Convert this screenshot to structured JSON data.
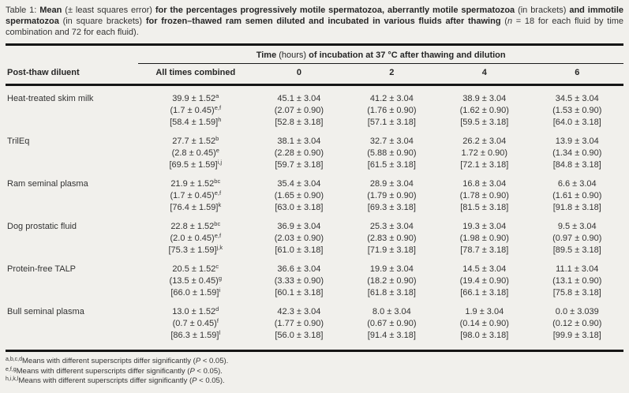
{
  "page": {
    "background": "#f1f0ec",
    "text_color": "#333333",
    "rule_color": "#161616"
  },
  "caption": {
    "segments": [
      {
        "text": "Table 1: ",
        "style": ""
      },
      {
        "text": "Mean ",
        "style": "bold"
      },
      {
        "text": "(± least squares error) ",
        "style": ""
      },
      {
        "text": "for the percentages progressively motile spermatozoa, aberrantly motile spermatozoa ",
        "style": "bold"
      },
      {
        "text": "(in brackets) ",
        "style": ""
      },
      {
        "text": "and immotile spermatozoa ",
        "style": "bold"
      },
      {
        "text": "(in square brackets) ",
        "style": ""
      },
      {
        "text": "for frozen–thawed ram semen diluted and incubated in various fluids after thawing ",
        "style": "bold"
      },
      {
        "text": "(",
        "style": ""
      },
      {
        "text": "n",
        "style": "italic"
      },
      {
        "text": " = 18 for each fluid by time combination and 72 for each fluid).",
        "style": ""
      }
    ]
  },
  "table": {
    "group_header_segments": [
      {
        "text": "Time ",
        "style": "bold"
      },
      {
        "text": "(hours) ",
        "style": ""
      },
      {
        "text": "of incubation at 37 °C after thawing and dilution",
        "style": "bold"
      }
    ],
    "col_headers": [
      "Post-thaw diluent",
      "All times combined",
      "0",
      "2",
      "4",
      "6"
    ],
    "rows": [
      {
        "diluent": "Heat-treated skim milk",
        "cells": [
          {
            "motile": "39.9 ± 1.52",
            "motile_sup": "a",
            "aberrant": "(1.7 ± 0.45)",
            "aberrant_sup": "e,f",
            "immotile": "[58.4 ± 1.59]",
            "immotile_sup": "h"
          },
          {
            "motile": "45.1 ± 3.04",
            "motile_sup": "",
            "aberrant": "(2.07 ± 0.90)",
            "aberrant_sup": "",
            "immotile": "[52.8 ± 3.18]",
            "immotile_sup": ""
          },
          {
            "motile": "41.2 ± 3.04",
            "motile_sup": "",
            "aberrant": "(1.76 ± 0.90)",
            "aberrant_sup": "",
            "immotile": "[57.1 ± 3.18]",
            "immotile_sup": ""
          },
          {
            "motile": "38.9 ± 3.04",
            "motile_sup": "",
            "aberrant": "(1.62 ± 0.90)",
            "aberrant_sup": "",
            "immotile": "[59.5 ± 3.18]",
            "immotile_sup": ""
          },
          {
            "motile": "34.5 ± 3.04",
            "motile_sup": "",
            "aberrant": "(1.53 ± 0.90)",
            "aberrant_sup": "",
            "immotile": "[64.0 ± 3.18]",
            "immotile_sup": ""
          }
        ]
      },
      {
        "diluent": "TrilEq",
        "cells": [
          {
            "motile": "27.7 ± 1.52",
            "motile_sup": "b",
            "aberrant": "(2.8 ± 0.45)",
            "aberrant_sup": "e",
            "immotile": "[69.5 ± 1.59]",
            "immotile_sup": "i,j"
          },
          {
            "motile": "38.1 ± 3.04",
            "motile_sup": "",
            "aberrant": "(2.28 ± 0.90)",
            "aberrant_sup": "",
            "immotile": "[59.7 ± 3.18]",
            "immotile_sup": ""
          },
          {
            "motile": "32.7 ± 3.04",
            "motile_sup": "",
            "aberrant": "(5.88 ± 0.90)",
            "aberrant_sup": "",
            "immotile": "[61.5 ± 3.18]",
            "immotile_sup": ""
          },
          {
            "motile": "26.2 ± 3.04",
            "motile_sup": "",
            "aberrant": "1.72 ± 0.90)",
            "aberrant_sup": "",
            "immotile": "[72.1 ± 3.18]",
            "immotile_sup": ""
          },
          {
            "motile": "13.9 ± 3.04",
            "motile_sup": "",
            "aberrant": "(1.34 ± 0.90)",
            "aberrant_sup": "",
            "immotile": "[84.8 ± 3.18]",
            "immotile_sup": ""
          }
        ]
      },
      {
        "diluent": "Ram seminal plasma",
        "cells": [
          {
            "motile": "21.9 ± 1.52",
            "motile_sup": "bc",
            "aberrant": "(1.7 ± 0.45)",
            "aberrant_sup": "e,f",
            "immotile": "[76.4 ± 1.59]",
            "immotile_sup": "k"
          },
          {
            "motile": "35.4 ± 3.04",
            "motile_sup": "",
            "aberrant": "(1.65 ± 0.90)",
            "aberrant_sup": "",
            "immotile": "[63.0 ± 3.18]",
            "immotile_sup": ""
          },
          {
            "motile": "28.9 ± 3.04",
            "motile_sup": "",
            "aberrant": "(1.79 ± 0.90)",
            "aberrant_sup": "",
            "immotile": "[69.3 ± 3.18]",
            "immotile_sup": ""
          },
          {
            "motile": "16.8 ± 3.04",
            "motile_sup": "",
            "aberrant": "(1.78 ± 0.90)",
            "aberrant_sup": "",
            "immotile": "[81.5 ± 3.18]",
            "immotile_sup": ""
          },
          {
            "motile": "6.6 ± 3.04",
            "motile_sup": "",
            "aberrant": "(1.61 ± 0.90)",
            "aberrant_sup": "",
            "immotile": "[91.8 ± 3.18]",
            "immotile_sup": ""
          }
        ]
      },
      {
        "diluent": "Dog prostatic fluid",
        "cells": [
          {
            "motile": "22.8 ± 1.52",
            "motile_sup": "bc",
            "aberrant": "(2.0 ± 0.45)",
            "aberrant_sup": "e,f",
            "immotile": "[75.3 ± 1.59]",
            "immotile_sup": "j,k"
          },
          {
            "motile": "36.9 ± 3.04",
            "motile_sup": "",
            "aberrant": "(2.03 ± 0.90)",
            "aberrant_sup": "",
            "immotile": "[61.0 ± 3.18]",
            "immotile_sup": ""
          },
          {
            "motile": "25.3 ± 3.04",
            "motile_sup": "",
            "aberrant": "(2.83 ± 0.90)",
            "aberrant_sup": "",
            "immotile": "[71.9 ± 3.18]",
            "immotile_sup": ""
          },
          {
            "motile": "19.3 ± 3.04",
            "motile_sup": "",
            "aberrant": "(1.98 ± 0.90)",
            "aberrant_sup": "",
            "immotile": "[78.7 ± 3.18]",
            "immotile_sup": ""
          },
          {
            "motile": "9.5 ± 3.04",
            "motile_sup": "",
            "aberrant": "(0.97 ± 0.90)",
            "aberrant_sup": "",
            "immotile": "[89.5 ± 3.18]",
            "immotile_sup": ""
          }
        ]
      },
      {
        "diluent": "Protein-free TALP",
        "cells": [
          {
            "motile": "20.5 ± 1.52",
            "motile_sup": "c",
            "aberrant": "(13.5 ± 0.45)",
            "aberrant_sup": "g",
            "immotile": "[66.0 ± 1.59]",
            "immotile_sup": "i"
          },
          {
            "motile": "36.6 ± 3.04",
            "motile_sup": "",
            "aberrant": "(3.33 ± 0.90)",
            "aberrant_sup": "",
            "immotile": "[60.1 ± 3.18]",
            "immotile_sup": ""
          },
          {
            "motile": "19.9 ± 3.04",
            "motile_sup": "",
            "aberrant": "(18.2 ± 0.90)",
            "aberrant_sup": "",
            "immotile": "[61.8 ± 3.18]",
            "immotile_sup": ""
          },
          {
            "motile": "14.5 ± 3.04",
            "motile_sup": "",
            "aberrant": "(19.4 ± 0.90)",
            "aberrant_sup": "",
            "immotile": "[66.1 ± 3.18]",
            "immotile_sup": ""
          },
          {
            "motile": "11.1 ± 3.04",
            "motile_sup": "",
            "aberrant": "(13.1 ± 0.90)",
            "aberrant_sup": "",
            "immotile": "[75.8 ± 3.18]",
            "immotile_sup": ""
          }
        ]
      },
      {
        "diluent": "Bull seminal plasma",
        "cells": [
          {
            "motile": "13.0 ± 1.52",
            "motile_sup": "d",
            "aberrant": "(0.7 ± 0.45)",
            "aberrant_sup": "f",
            "immotile": "[86.3 ± 1.59]",
            "immotile_sup": "l"
          },
          {
            "motile": "42.3 ± 3.04",
            "motile_sup": "",
            "aberrant": "(1.77 ± 0.90)",
            "aberrant_sup": "",
            "immotile": "[56.0 ± 3.18]",
            "immotile_sup": ""
          },
          {
            "motile": "8.0 ± 3.04",
            "motile_sup": "",
            "aberrant": "(0.67 ± 0.90)",
            "aberrant_sup": "",
            "immotile": "[91.4 ± 3.18]",
            "immotile_sup": ""
          },
          {
            "motile": "1.9 ± 3.04",
            "motile_sup": "",
            "aberrant": "(0.14 ± 0.90)",
            "aberrant_sup": "",
            "immotile": "[98.0 ± 3.18]",
            "immotile_sup": ""
          },
          {
            "motile": "0.0 ± 3.039",
            "motile_sup": "",
            "aberrant": "(0.12 ± 0.90)",
            "aberrant_sup": "",
            "immotile": "[99.9 ± 3.18]",
            "immotile_sup": ""
          }
        ]
      }
    ]
  },
  "footnotes": [
    {
      "sup": "a,b,c,d",
      "segments": [
        {
          "text": "Means with different superscripts differ significantly (",
          "style": ""
        },
        {
          "text": "P",
          "style": "italic"
        },
        {
          "text": " < 0.05).",
          "style": ""
        }
      ]
    },
    {
      "sup": "e,f,g",
      "segments": [
        {
          "text": "Means with different superscripts differ significantly (",
          "style": ""
        },
        {
          "text": "P",
          "style": "italic"
        },
        {
          "text": " < 0.05).",
          "style": ""
        }
      ]
    },
    {
      "sup": "h,i,k,l",
      "segments": [
        {
          "text": "Means with different superscripts differ significantly (",
          "style": ""
        },
        {
          "text": "P",
          "style": "italic"
        },
        {
          "text": " < 0.05).",
          "style": ""
        }
      ]
    }
  ]
}
